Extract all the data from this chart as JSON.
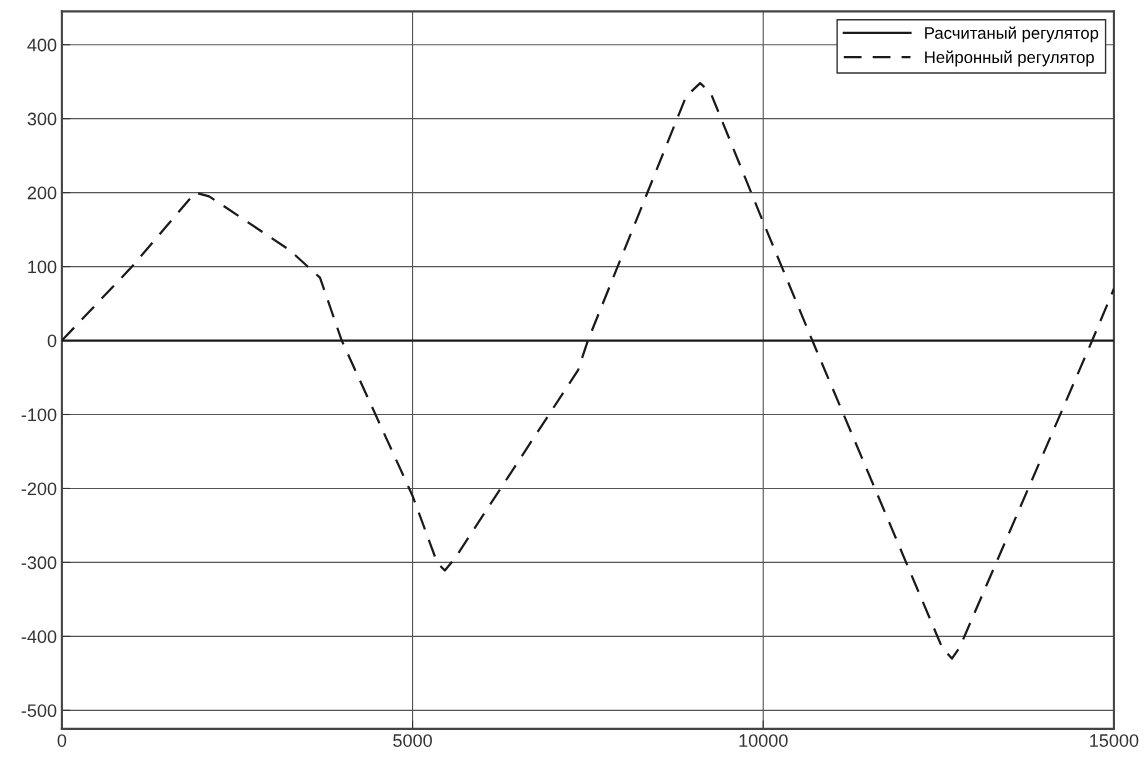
{
  "chart_data": {
    "type": "line",
    "xlim": [
      0,
      15000
    ],
    "xticks": [
      0,
      5000,
      10000,
      15000
    ],
    "ylim": [
      -525,
      445
    ],
    "yticks": [
      -500,
      -400,
      -300,
      -200,
      -100,
      0,
      100,
      200,
      300,
      400
    ],
    "grid": true,
    "legend": "top right",
    "series": [
      {
        "name": "Расчитаный регулятор",
        "color": "#1a1a1a",
        "line_style": "solid",
        "x": [
          0,
          15000
        ],
        "values": [
          0,
          0
        ]
      },
      {
        "name": "Нейронный регулятор",
        "color": "#1a1a1a",
        "line_style": "dashed",
        "x": [
          0,
          1000,
          1900,
          2100,
          3250,
          3680,
          3990,
          5000,
          5350,
          5460,
          5600,
          7360,
          7500,
          8900,
          9100,
          9250,
          10000,
          10700,
          12550,
          12690,
          12800,
          14690,
          15000
        ],
        "values": [
          0,
          100,
          200,
          195,
          122,
          85,
          0,
          -210,
          -300,
          -311,
          -295,
          -40,
          0,
          330,
          348,
          335,
          160,
          0,
          -415,
          -430,
          -415,
          0,
          70
        ]
      }
    ]
  }
}
